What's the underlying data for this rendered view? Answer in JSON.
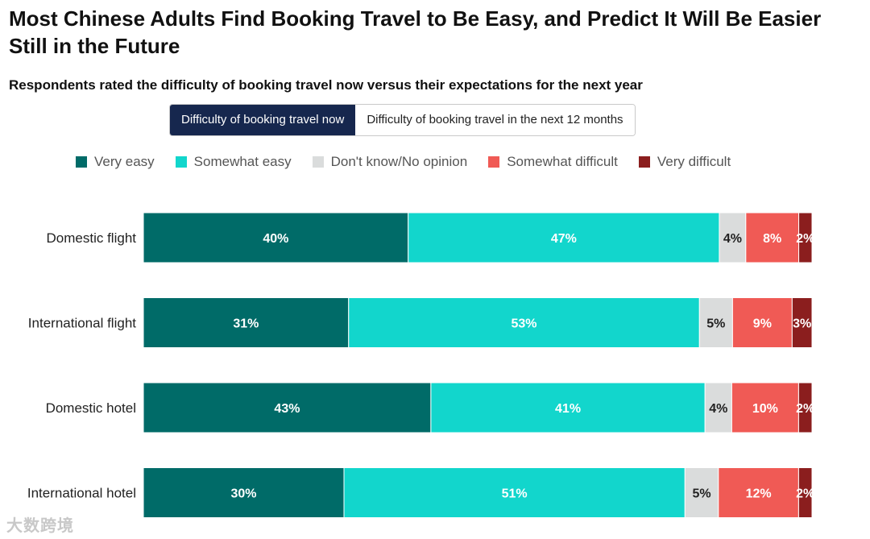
{
  "title": "Most Chinese Adults Find Booking Travel to Be Easy, and Predict It Will Be Easier Still in the Future",
  "subtitle": "Respondents rated the difficulty of booking travel now versus their expectations for the next year",
  "tabs": [
    {
      "label": "Difficulty of booking travel now",
      "active": true
    },
    {
      "label": "Difficulty of booking travel in the next 12 months",
      "active": false
    }
  ],
  "watermark": "大数跨境",
  "chart_data": {
    "type": "bar",
    "orientation": "horizontal",
    "stacked": true,
    "categories": [
      "Domestic flight",
      "International flight",
      "Domestic hotel",
      "International hotel"
    ],
    "series": [
      {
        "name": "Very easy",
        "color": "#006b68",
        "values": [
          40,
          31,
          43,
          30
        ],
        "labels": [
          "40%",
          "31%",
          "43%",
          "30%"
        ]
      },
      {
        "name": "Somewhat easy",
        "color": "#12d6cc",
        "values": [
          47,
          53,
          41,
          51
        ],
        "labels": [
          "47%",
          "53%",
          "41%",
          "51%"
        ]
      },
      {
        "name": "Don't know/No opinion",
        "color": "#dadcdc",
        "values": [
          4,
          5,
          4,
          5
        ],
        "labels": [
          "4%",
          "5%",
          "4%",
          "5%"
        ]
      },
      {
        "name": "Somewhat difficult",
        "color": "#f05a55",
        "values": [
          8,
          9,
          10,
          12
        ],
        "labels": [
          "8%",
          "9%",
          "10%",
          "12%"
        ]
      },
      {
        "name": "Very difficult",
        "color": "#8b1e1e",
        "values": [
          2,
          3,
          2,
          2
        ],
        "labels": [
          "2%",
          "3%",
          "2%",
          "2%"
        ]
      }
    ],
    "legend_position": "top",
    "grid": false
  }
}
